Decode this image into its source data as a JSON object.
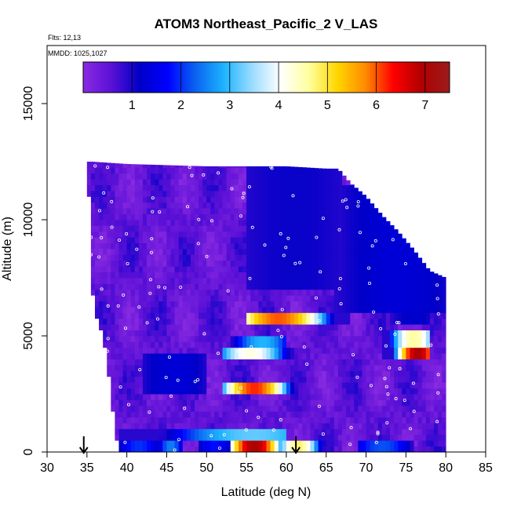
{
  "chart_data": {
    "type": "heatmap",
    "title": "ATOM3 Northeast_Pacific_2 V_LAS",
    "annotations": {
      "flights": "Flts: 12,13",
      "dates": "MMDD: 1025,1027"
    },
    "xlabel": "Latitude (deg N)",
    "ylabel": "Altitude (m)",
    "xlim": [
      30,
      85
    ],
    "ylim": [
      0,
      17500
    ],
    "xticks": [
      "30",
      "35",
      "40",
      "45",
      "50",
      "55",
      "60",
      "65",
      "70",
      "75",
      "80",
      "85"
    ],
    "yticks": [
      "0",
      "5000",
      "10000",
      "15000"
    ],
    "colorbar": {
      "range": [
        0,
        7.5
      ],
      "ticks": [
        "1",
        "2",
        "3",
        "4",
        "5",
        "6",
        "7"
      ],
      "stops": [
        "#8a2be2",
        "#5b10d6",
        "#0000c8",
        "#0000ff",
        "#0a64f0",
        "#1eb4ff",
        "#9cdcff",
        "#ffffff",
        "#ffffa0",
        "#ffd700",
        "#ff8c00",
        "#ff0000",
        "#b00000",
        "#9b1c1c"
      ]
    },
    "coverage": [
      {
        "lat": 35.6,
        "alt_max": 12500
      },
      {
        "lat": 40,
        "alt_max": 12400
      },
      {
        "lat": 45,
        "alt_max": 12350
      },
      {
        "lat": 50,
        "alt_max": 12300
      },
      {
        "lat": 55,
        "alt_max": 12300
      },
      {
        "lat": 60,
        "alt_max": 12300
      },
      {
        "lat": 65,
        "alt_max": 12200
      },
      {
        "lat": 66.5,
        "alt_max": 12200
      },
      {
        "lat": 68,
        "alt_max": 11600
      },
      {
        "lat": 70,
        "alt_max": 11000
      },
      {
        "lat": 72,
        "alt_max": 10200
      },
      {
        "lat": 74,
        "alt_max": 9500
      },
      {
        "lat": 76,
        "alt_max": 8700
      },
      {
        "lat": 78,
        "alt_max": 7800
      },
      {
        "lat": 80,
        "alt_max": 7500
      }
    ],
    "coverage_low": [
      {
        "lat": 35.3,
        "alt_min": 11000
      },
      {
        "lat": 35.1,
        "alt_min": 8000
      },
      {
        "lat": 36,
        "alt_min": 6300
      },
      {
        "lat": 37,
        "alt_min": 5000
      },
      {
        "lat": 37.5,
        "alt_min": 4100
      },
      {
        "lat": 38,
        "alt_min": 2500
      },
      {
        "lat": 38.5,
        "alt_min": 1200
      },
      {
        "lat": 39,
        "alt_min": 0
      }
    ],
    "background_value": 0.5,
    "features": [
      {
        "lat": [
          59.5,
          65
        ],
        "alt": [
          0,
          500
        ],
        "peak_lat": 61.5,
        "peak": 4.8
      },
      {
        "lat": [
          44,
          47
        ],
        "alt": [
          0,
          500
        ],
        "peak_lat": 45.5,
        "peak": 2.5
      },
      {
        "lat": [
          49,
          53
        ],
        "alt": [
          0,
          500
        ],
        "peak_lat": 51,
        "peak": 1.8
      },
      {
        "lat": [
          69,
          76
        ],
        "alt": [
          0,
          450
        ],
        "peak_lat": 72,
        "peak": 2.2
      },
      {
        "lat": [
          53,
          60.5
        ],
        "alt": [
          0,
          450
        ],
        "peak_lat": 56,
        "peak": 7.0
      },
      {
        "lat": [
          39,
          44
        ],
        "alt": [
          0,
          450
        ],
        "peak_lat": 41.5,
        "peak": 2.0
      },
      {
        "lat": [
          39,
          60
        ],
        "alt": [
          450,
          950
        ],
        "peak_lat": 56,
        "peak": 3.2
      },
      {
        "lat": [
          52,
          61
        ],
        "alt": [
          2400,
          2950
        ],
        "peak_lat": 56,
        "peak": 6.2
      },
      {
        "lat": [
          52,
          61
        ],
        "alt": [
          3900,
          4450
        ],
        "peak_lat": 55.5,
        "peak": 4.2
      },
      {
        "lat": [
          53,
          60
        ],
        "alt": [
          4500,
          5000
        ],
        "peak_lat": 57,
        "peak": 2.9
      },
      {
        "lat": [
          55,
          68
        ],
        "alt": [
          5500,
          6000
        ],
        "peak_lat": 59,
        "peak": 6.0
      },
      {
        "lat": [
          72,
          78
        ],
        "alt": [
          3900,
          4500
        ],
        "peak_lat": 76.5,
        "peak": 7.0
      },
      {
        "lat": [
          72,
          78
        ],
        "alt": [
          4500,
          5100
        ],
        "peak_lat": 76,
        "peak": 4.6
      },
      {
        "lat": [
          42,
          50
        ],
        "alt": [
          2500,
          4200
        ],
        "peak_lat": 46,
        "peak": 1.3
      },
      {
        "lat": [
          73,
          78
        ],
        "alt": [
          5400,
          6200
        ],
        "peak_lat": 76,
        "peak": 1.2
      },
      {
        "lat": [
          55,
          67
        ],
        "alt": [
          7000,
          12300
        ],
        "peak_lat": 61,
        "peak": 1.1
      },
      {
        "lat": [
          66,
          80
        ],
        "alt": [
          6000,
          11500
        ],
        "peak_lat": 74,
        "peak": 1.3
      }
    ],
    "markers": [
      {
        "lat": 34.6,
        "label": "down-arrow"
      },
      {
        "lat": 61.2,
        "label": "down-arrow"
      }
    ],
    "grid": false,
    "legend_placement": "top (inside plot)"
  }
}
